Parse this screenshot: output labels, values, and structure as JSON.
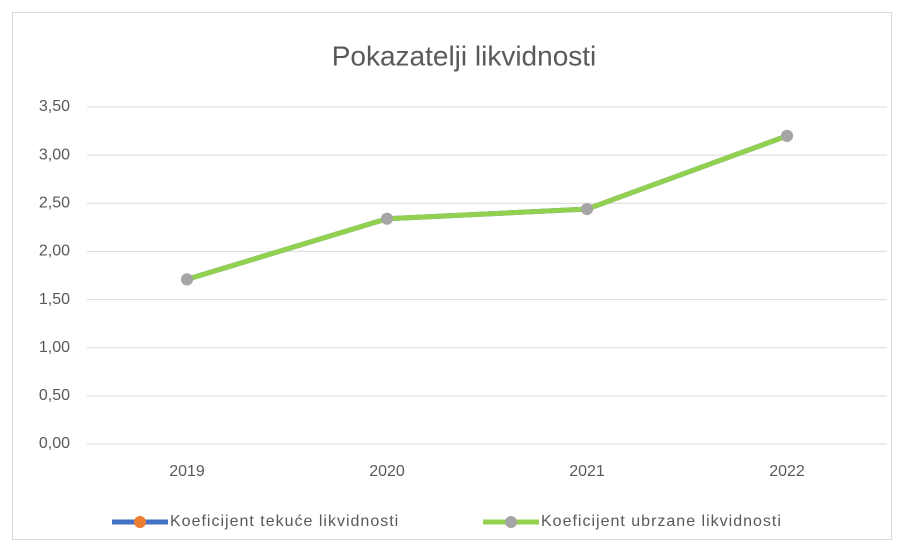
{
  "chart_data": {
    "type": "line",
    "title": "Pokazatelji likvidnosti",
    "categories": [
      "2019",
      "2020",
      "2021",
      "2022"
    ],
    "series": [
      {
        "name": "Koeficijent tekuće likvidnosti",
        "color": "#4472c4",
        "marker_color": "#ed7d31",
        "values": [
          1.71,
          2.34,
          2.44,
          3.2
        ]
      },
      {
        "name": "Koeficijent ubrzane likvidnosti",
        "color": "#92d050",
        "marker_color": "#a5a5a5",
        "values": [
          1.71,
          2.34,
          2.44,
          3.2
        ]
      }
    ],
    "ylim": [
      0,
      3.5
    ],
    "yticks": [
      {
        "value": 0,
        "label": "0,00"
      },
      {
        "value": 0.5,
        "label": "0,50"
      },
      {
        "value": 1,
        "label": "1,00"
      },
      {
        "value": 1.5,
        "label": "1,50"
      },
      {
        "value": 2,
        "label": "2,00"
      },
      {
        "value": 2.5,
        "label": "2,50"
      },
      {
        "value": 3,
        "label": "3,00"
      },
      {
        "value": 3.5,
        "label": "3,50"
      }
    ],
    "grid": true,
    "legend": "bottom"
  }
}
